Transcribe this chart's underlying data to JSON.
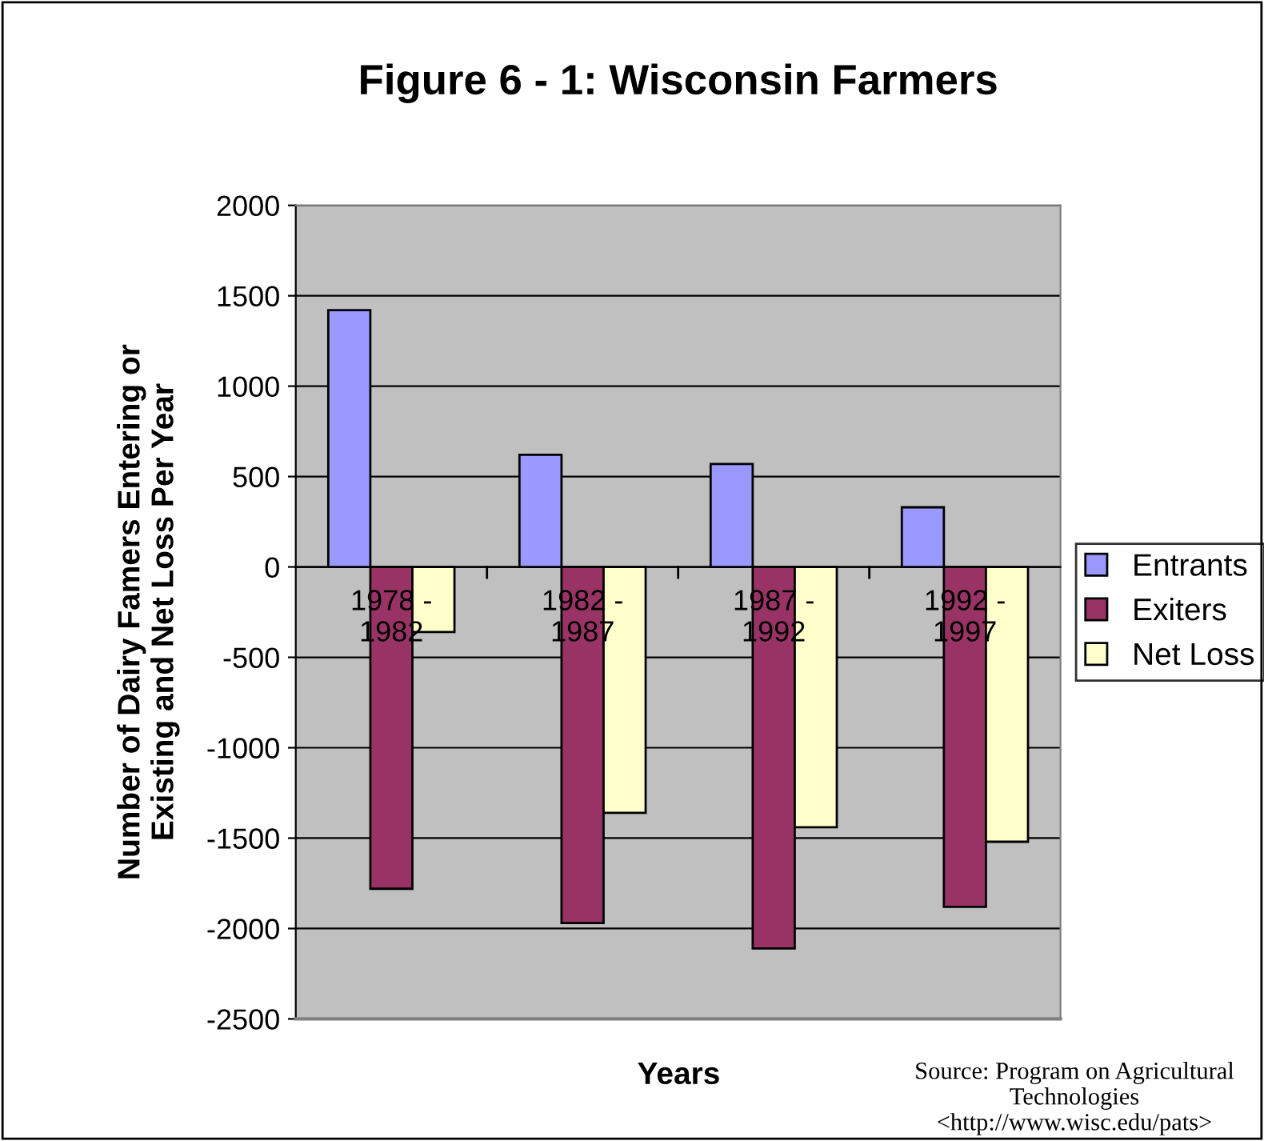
{
  "chart_data": {
    "type": "bar",
    "title": "Figure 6 - 1: Wisconsin Farmers",
    "xlabel": "Years",
    "ylabel": "Number of Dairy Famers Entering or\nExisting and Net Loss Per Year",
    "categories": [
      "1978 -\n1982",
      "1982 -\n1987",
      "1987 -\n1992",
      "1992 -\n1997"
    ],
    "series": [
      {
        "name": "Entrants",
        "color": "#9999ff",
        "values": [
          1420,
          620,
          570,
          330
        ]
      },
      {
        "name": "Exiters",
        "color": "#993366",
        "values": [
          -1780,
          -1970,
          -2110,
          -1880
        ]
      },
      {
        "name": "Net Loss",
        "color": "#ffffcc",
        "values": [
          -360,
          -1360,
          -1440,
          -1520
        ]
      }
    ],
    "ylim": [
      -2500,
      2000
    ],
    "yticks": [
      -2500,
      -2000,
      -1500,
      -1000,
      -500,
      0,
      500,
      1000,
      1500,
      2000
    ],
    "grid": "y",
    "legend": "right",
    "annotations": [
      "Source: Program on Agricultural Technologies <http://www.wisc.edu/pats>"
    ]
  }
}
